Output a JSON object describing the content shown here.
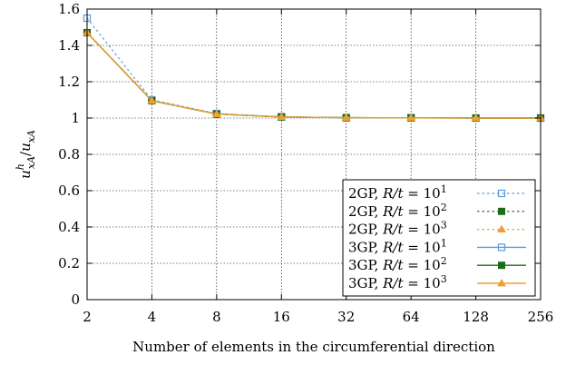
{
  "chart_data": {
    "type": "line",
    "xlabel": "Number of elements in the circumferential direction",
    "ylabel": {
      "base": "u",
      "sup": "h",
      "sub_num": "xA",
      "den_base": "u",
      "sub_den": "xA"
    },
    "x_scale": "log2",
    "x": [
      2,
      4,
      8,
      16,
      32,
      64,
      128,
      256
    ],
    "x_tick_labels": [
      "2",
      "4",
      "8",
      "16",
      "32",
      "64",
      "128",
      "256"
    ],
    "ylim": [
      0,
      1.6
    ],
    "y_ticks": [
      0,
      0.2,
      0.4,
      0.6,
      0.8,
      1,
      1.2,
      1.4,
      1.6
    ],
    "y_tick_labels": [
      "0",
      "0.2",
      "0.4",
      "0.6",
      "0.8",
      "1",
      "1.2",
      "1.4",
      "1.6"
    ],
    "grid": true,
    "legend_position": "bottom-right",
    "series": [
      {
        "name": "2GP, R/t = 10^1",
        "scheme": "2GP",
        "exp": "1",
        "color": "#5b9bd5",
        "dash": "dotted",
        "marker": "square-open",
        "values": [
          1.55,
          1.1,
          1.025,
          1.007,
          1.002,
          1.001,
          1.0,
          1.0
        ]
      },
      {
        "name": "2GP, R/t = 10^2",
        "scheme": "2GP",
        "exp": "2",
        "color": "#1a6b1a",
        "dash": "dotted",
        "marker": "square-filled",
        "values": [
          1.47,
          1.095,
          1.022,
          1.006,
          1.002,
          1.001,
          1.0,
          1.0
        ]
      },
      {
        "name": "2GP, R/t = 10^3",
        "scheme": "2GP",
        "exp": "3",
        "color": "#f0a030",
        "dash": "dotted",
        "marker": "triangle-filled",
        "values": [
          1.47,
          1.095,
          1.022,
          1.006,
          1.002,
          1.001,
          1.0,
          1.0
        ]
      },
      {
        "name": "3GP, R/t = 10^1",
        "scheme": "3GP",
        "exp": "1",
        "color": "#5b9bd5",
        "dash": "solid",
        "marker": "square-open",
        "values": [
          1.47,
          1.095,
          1.022,
          1.006,
          1.002,
          1.001,
          1.0,
          1.0
        ]
      },
      {
        "name": "3GP, R/t = 10^2",
        "scheme": "3GP",
        "exp": "2",
        "color": "#1a6b1a",
        "dash": "solid",
        "marker": "square-filled",
        "values": [
          1.47,
          1.095,
          1.022,
          1.006,
          1.002,
          1.001,
          1.0,
          1.0
        ]
      },
      {
        "name": "3GP, R/t = 10^3",
        "scheme": "3GP",
        "exp": "3",
        "color": "#f0a030",
        "dash": "solid",
        "marker": "triangle-filled",
        "values": [
          1.47,
          1.095,
          1.022,
          1.006,
          1.002,
          1.001,
          1.0,
          1.0
        ]
      }
    ]
  }
}
